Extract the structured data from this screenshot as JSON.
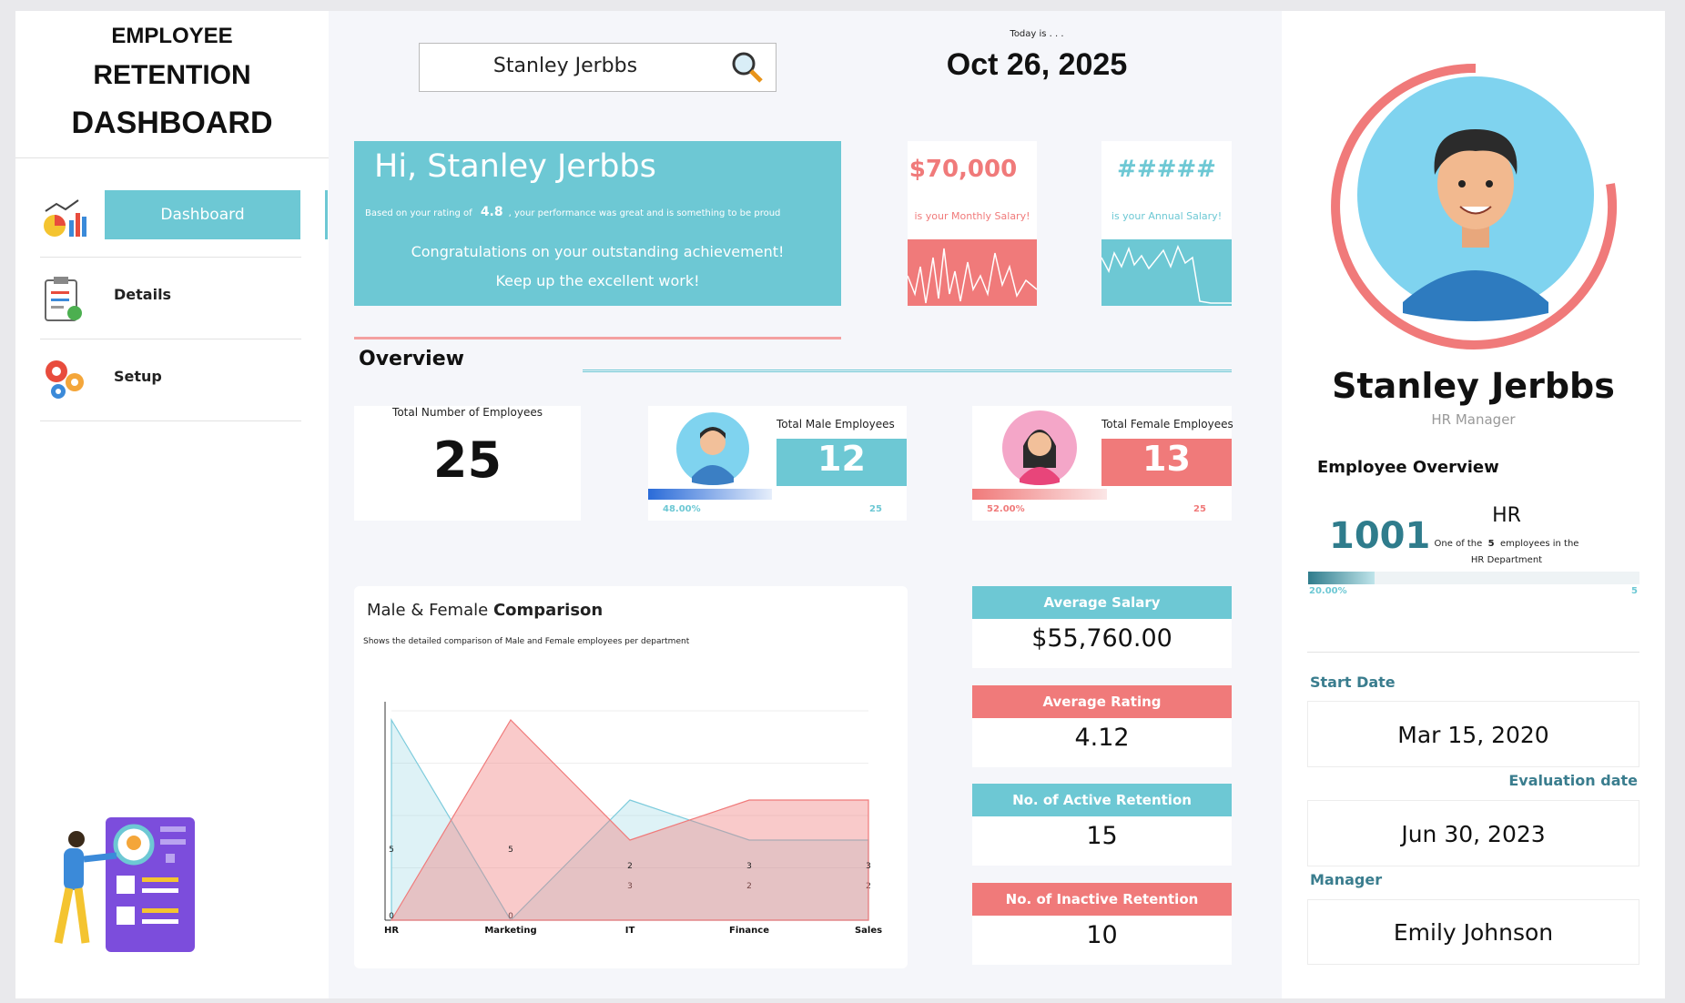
{
  "sidebar": {
    "title": [
      "EMPLOYEE",
      "RETENTION",
      "DASHBOARD"
    ],
    "menu": [
      "Dashboard",
      "Details",
      "Setup"
    ]
  },
  "header": {
    "search": "Stanley Jerbbs",
    "today_label": "Today is . . .",
    "date": "Oct 26, 2025"
  },
  "greeting": {
    "title": "Hi, Stanley Jerbbs",
    "rating_prefix": "Based on your rating of",
    "rating": "4.8",
    "rating_suffix": ", your performance was great and is something to be proud",
    "line1": "Congratulations on your outstanding achievement!",
    "line2": "Keep up the excellent work!"
  },
  "salary": {
    "monthly": "$70,000",
    "monthly_caption": "is your Monthly Salary!",
    "annual": "#####",
    "annual_caption": "is your Annual Salary!"
  },
  "overview": {
    "title": "Overview",
    "total_label": "Total Number of Employees",
    "total": "25",
    "male_label": "Total Male Employees",
    "male": "12",
    "male_pct": "48.00%",
    "male_max": "25",
    "female_label": "Total Female Employees",
    "female": "13",
    "female_pct": "52.00%",
    "female_max": "25"
  },
  "chart_data": {
    "type": "area",
    "title_prefix": "Male & Female",
    "title_bold": "Comparison",
    "subtitle": "Shows the detailed comparison of Male and Female employees per department",
    "categories": [
      "HR",
      "Marketing",
      "IT",
      "Finance",
      "Sales"
    ],
    "series": [
      {
        "color": "#7ccbdc",
        "values": [
          5,
          0,
          3,
          2,
          2
        ]
      },
      {
        "color": "#f07a7a",
        "values": [
          0,
          5,
          2,
          3,
          3
        ]
      }
    ],
    "ylim": [
      0,
      5
    ]
  },
  "stats": [
    {
      "label": "Average Salary",
      "value": "$55,760.00"
    },
    {
      "label": "Average Rating",
      "value": "4.12"
    },
    {
      "label": "No. of Active Retention",
      "value": "15"
    },
    {
      "label": "No. of Inactive Retention",
      "value": "10"
    }
  ],
  "profile": {
    "name": "Stanley Jerbbs",
    "role": "HR Manager",
    "overview_title": "Employee Overview",
    "id": "1001",
    "department": "HR",
    "note_prefix": "One of the",
    "count": "5",
    "note_suffix": "employees in the",
    "note_dept": "HR",
    "note_end": "Department",
    "pct": "20.00%",
    "max": "5",
    "start_label": "Start Date",
    "start": "Mar 15, 2020",
    "eval_label": "Evaluation date",
    "eval": "Jun 30, 2023",
    "manager_label": "Manager",
    "manager": "Emily Johnson"
  }
}
